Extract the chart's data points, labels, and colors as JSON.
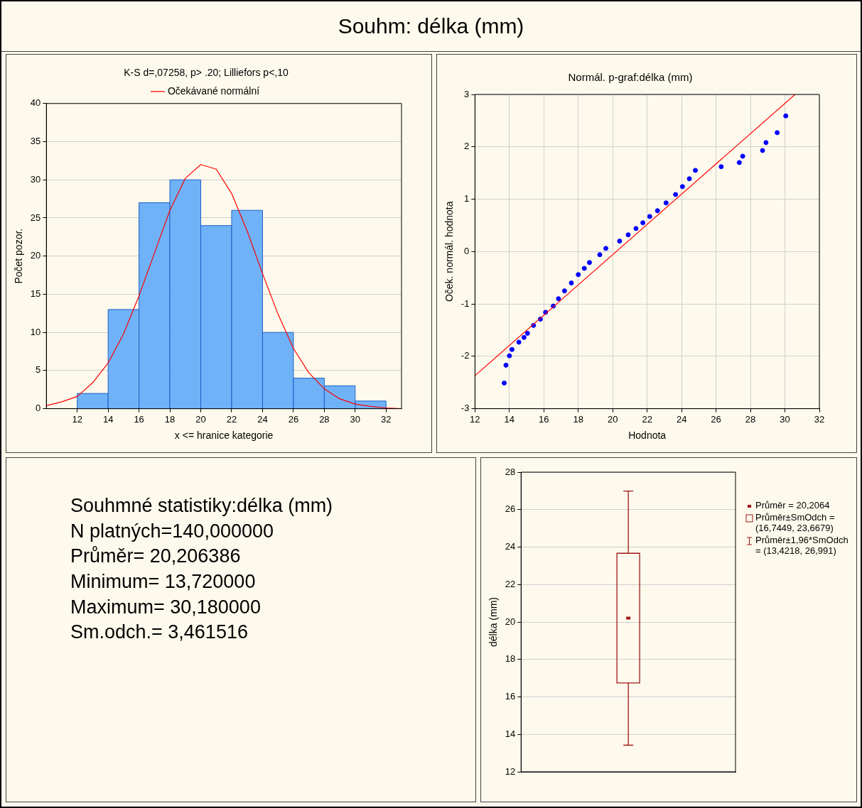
{
  "chart_data": [
    {
      "type": "histogram",
      "title": "Souhm: délka (mm)",
      "subtitle": "K-S d=,07258, p> .20; Lilliefors p<,10",
      "xlabel": "x <= hranice kategorie",
      "ylabel": "Počet pozor.",
      "bins": [
        12,
        14,
        16,
        18,
        20,
        22,
        24,
        26,
        28,
        30,
        32
      ],
      "values": [
        2,
        13,
        27,
        30,
        24,
        26,
        10,
        4,
        3,
        1
      ],
      "color": "#6fb2f8",
      "series": [
        {
          "name": "Očekávané normální",
          "type": "line",
          "color": "#ff0000",
          "x": [
            10,
            11,
            12,
            13,
            14,
            15,
            16,
            17,
            18,
            19,
            20,
            21,
            22,
            23,
            24,
            25,
            26,
            27,
            28,
            29,
            30,
            31,
            32,
            33
          ],
          "values": [
            0.4,
            0.9,
            1.6,
            3.4,
            6.0,
            9.8,
            14.8,
            20.4,
            26.0,
            30.2,
            32.0,
            31.4,
            28.2,
            23.3,
            17.7,
            12.4,
            7.9,
            4.7,
            2.6,
            1.3,
            0.6,
            0.3,
            0.1,
            0
          ]
        }
      ],
      "xlim": [
        10,
        33
      ],
      "xticks": [
        12,
        14,
        16,
        18,
        20,
        22,
        24,
        26,
        28,
        30,
        32
      ],
      "ylim": [
        0,
        40
      ],
      "yticks": [
        0,
        5,
        10,
        15,
        20,
        25,
        30,
        35,
        40
      ],
      "grid": "y",
      "legend": "top",
      "line_style": "solid"
    },
    {
      "type": "scatter",
      "title": "Normál. p-graf:délka (mm)",
      "xlabel": "Hodnota",
      "ylabel": "Oček. normál. hodnota",
      "marker": "circle",
      "series": [
        {
          "type": "scatter",
          "color": "#0000ff",
          "x": [
            13.7,
            13.8,
            14.0,
            14.15,
            14.55,
            14.85,
            15.05,
            15.4,
            15.8,
            16.1,
            16.55,
            16.85,
            17.2,
            17.6,
            18.0,
            18.35,
            18.65,
            19.25,
            19.6,
            20.4,
            20.9,
            21.35,
            21.75,
            22.15,
            22.6,
            23.1,
            23.65,
            24.05,
            24.45,
            24.8,
            26.3,
            27.35,
            27.55,
            28.7,
            28.9,
            29.55,
            30.05
          ],
          "values": [
            -2.51,
            -2.17,
            -1.99,
            -1.87,
            -1.73,
            -1.64,
            -1.56,
            -1.41,
            -1.29,
            -1.16,
            -1.04,
            -0.9,
            -0.75,
            -0.6,
            -0.44,
            -0.32,
            -0.21,
            -0.06,
            0.06,
            0.2,
            0.32,
            0.44,
            0.55,
            0.67,
            0.78,
            0.93,
            1.09,
            1.24,
            1.39,
            1.55,
            1.62,
            1.7,
            1.82,
            1.93,
            2.08,
            2.27,
            2.59
          ]
        },
        {
          "type": "line",
          "color": "#ff0000",
          "marker": "none",
          "x": [
            12,
            30.59
          ],
          "values": [
            -2.37,
            3
          ]
        }
      ],
      "xlim": [
        12,
        32
      ],
      "xticks": [
        12,
        14,
        16,
        18,
        20,
        22,
        24,
        26,
        28,
        30,
        32
      ],
      "ylim": [
        -3,
        3
      ],
      "yticks": [
        -3,
        -2,
        -1,
        0,
        1,
        2,
        3
      ],
      "grid": true
    },
    {
      "type": "other",
      "title": "Souhmné statistiky:délka (mm)",
      "annotations": [
        "N platných=140,000000",
        "Průměr= 20,206386",
        "Minimum= 13,720000",
        "Maximum= 30,180000",
        "Sm.odch.= 3,461516"
      ]
    },
    {
      "type": "box",
      "ylabel": "délka (mm)",
      "categories": [
        null
      ],
      "color": "#a01818",
      "boxes": [
        {
          "low": 13.4218,
          "q1": 16.7449,
          "median": 20.2064,
          "q3": 23.6679,
          "high": 26.991
        }
      ],
      "ylim": [
        12,
        28
      ],
      "yticks": [
        12,
        14,
        16,
        18,
        20,
        22,
        24,
        26,
        28
      ],
      "grid": "y",
      "tick_labels": "y",
      "annotations": [
        "Průměr = 20,2064",
        "Průměr±SmOdch = (16,7449, 23,6679)",
        "Průměr±1,96*SmOdch = (13,4218, 26,991)"
      ]
    }
  ]
}
